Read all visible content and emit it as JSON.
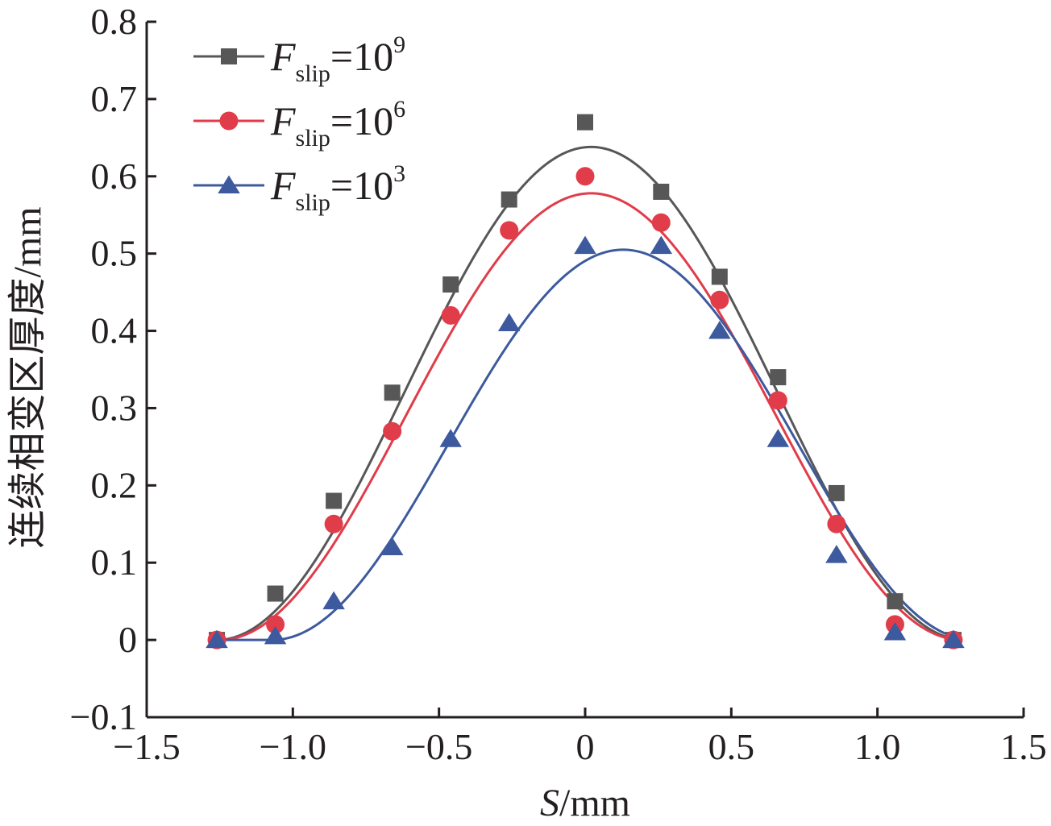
{
  "chart_data": {
    "type": "scatter",
    "xlabel_var": "S",
    "xlabel_unit": "/mm",
    "ylabel": "连续相变区厚度/mm",
    "xlim": [
      -1.5,
      1.5
    ],
    "ylim": [
      -0.1,
      0.8
    ],
    "x_ticks": [
      "−1.5",
      "−1.0",
      "−0.5",
      "0",
      "0.5",
      "1.0",
      "1.5"
    ],
    "y_ticks": [
      "−0.1",
      "0",
      "0.1",
      "0.2",
      "0.3",
      "0.4",
      "0.5",
      "0.6",
      "0.7",
      "0.8"
    ],
    "x": [
      -1.26,
      -1.06,
      -0.86,
      -0.66,
      -0.46,
      -0.26,
      0,
      0.26,
      0.46,
      0.66,
      0.86,
      1.06,
      1.26
    ],
    "series": [
      {
        "name_var": "F",
        "name_sub": "slip",
        "name_eq": "=10",
        "name_exp": "9",
        "marker": "square",
        "color": "#575757",
        "values": [
          0,
          0.06,
          0.18,
          0.32,
          0.46,
          0.57,
          0.67,
          0.58,
          0.47,
          0.34,
          0.19,
          0.05,
          0
        ],
        "fit": {
          "peak": 0.638,
          "center": 0.02,
          "half_width": 1.28
        }
      },
      {
        "name_var": "F",
        "name_sub": "slip",
        "name_eq": "=10",
        "name_exp": "6",
        "marker": "circle",
        "color": "#e03c4a",
        "values": [
          0,
          0.02,
          0.15,
          0.27,
          0.42,
          0.53,
          0.6,
          0.54,
          0.44,
          0.31,
          0.15,
          0.02,
          0
        ],
        "fit": {
          "peak": 0.578,
          "center": 0.02,
          "half_width": 1.27
        }
      },
      {
        "name_var": "F",
        "name_sub": "slip",
        "name_eq": "=10",
        "name_exp": "3",
        "marker": "triangle",
        "color": "#3d5a9e",
        "values": [
          0,
          0.005,
          0.05,
          0.12,
          0.26,
          0.41,
          0.51,
          0.51,
          0.4,
          0.26,
          0.11,
          0.01,
          0
        ],
        "fit": {
          "peak": 0.505,
          "center": 0.13,
          "half_width": 1.2
        }
      }
    ]
  }
}
